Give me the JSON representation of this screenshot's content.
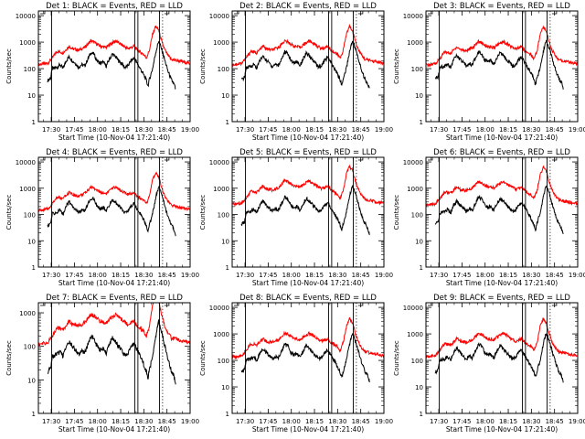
{
  "figure": {
    "background": "#ffffff",
    "axis_color": "#000000",
    "events_color": "#000000",
    "lld_color": "#ff0000"
  },
  "chart_data": [
    {
      "type": "line",
      "title": "Det 1: BLACK = Events, RED = LLD",
      "ylabel": "Counts/sec",
      "xlabel": "Start Time (10-Nov-04 17:21:40)",
      "x_ticklabels": [
        "17:30",
        "17:45",
        "18:00",
        "18:15",
        "18:30",
        "18:45",
        "19:00"
      ],
      "y_ticklabels": [
        "1",
        "10",
        "100",
        "1000",
        "10000"
      ],
      "ylim": [
        1,
        15000
      ],
      "yscale": "log",
      "series": [
        {
          "name": "Events",
          "color": "#000000",
          "level": 1.0
        },
        {
          "name": "LLD",
          "color": "#ff0000",
          "level": 1.0
        }
      ]
    },
    {
      "type": "line",
      "title": "Det 2: BLACK = Events, RED = LLD",
      "ylabel": "Counts/sec",
      "xlabel": "Start Time (10-Nov-04 17:21:40)",
      "x_ticklabels": [
        "17:30",
        "17:45",
        "18:00",
        "18:15",
        "18:30",
        "18:45",
        "19:00"
      ],
      "y_ticklabels": [
        "1",
        "10",
        "100",
        "1000",
        "10000"
      ],
      "ylim": [
        1,
        15000
      ],
      "yscale": "log",
      "series": [
        {
          "name": "Events",
          "color": "#000000",
          "level": 1.05
        },
        {
          "name": "LLD",
          "color": "#ff0000",
          "level": 1.0
        }
      ]
    },
    {
      "type": "line",
      "title": "Det 3: BLACK = Events, RED = LLD",
      "ylabel": "Counts/sec",
      "xlabel": "Start Time (10-Nov-04 17:21:40)",
      "x_ticklabels": [
        "17:30",
        "17:45",
        "18:00",
        "18:15",
        "18:30",
        "18:45",
        "19:00"
      ],
      "y_ticklabels": [
        "1",
        "10",
        "100",
        "1000",
        "10000"
      ],
      "ylim": [
        1,
        15000
      ],
      "yscale": "log",
      "series": [
        {
          "name": "Events",
          "color": "#000000",
          "level": 1.1
        },
        {
          "name": "LLD",
          "color": "#ff0000",
          "level": 0.95
        }
      ]
    },
    {
      "type": "line",
      "title": "Det 4: BLACK = Events, RED = LLD",
      "ylabel": "Counts/sec",
      "xlabel": "Start Time (10-Nov-04 17:21:40)",
      "x_ticklabels": [
        "17:30",
        "17:45",
        "18:00",
        "18:15",
        "18:30",
        "18:45",
        "19:00"
      ],
      "y_ticklabels": [
        "1",
        "10",
        "100",
        "1000",
        "10000"
      ],
      "ylim": [
        1,
        15000
      ],
      "yscale": "log",
      "series": [
        {
          "name": "Events",
          "color": "#000000",
          "level": 1.05
        },
        {
          "name": "LLD",
          "color": "#ff0000",
          "level": 1.0
        }
      ]
    },
    {
      "type": "line",
      "title": "Det 5: BLACK = Events, RED = LLD",
      "ylabel": "Counts/sec",
      "xlabel": "Start Time (10-Nov-04 17:21:40)",
      "x_ticklabels": [
        "17:30",
        "17:45",
        "18:00",
        "18:15",
        "18:30",
        "18:45",
        "19:00"
      ],
      "y_ticklabels": [
        "1",
        "10",
        "100",
        "1000",
        "10000"
      ],
      "ylim": [
        1,
        15000
      ],
      "yscale": "log",
      "series": [
        {
          "name": "Events",
          "color": "#000000",
          "level": 1.15
        },
        {
          "name": "LLD",
          "color": "#ff0000",
          "level": 1.7
        }
      ]
    },
    {
      "type": "line",
      "title": "Det 6: BLACK = Events, RED = LLD",
      "ylabel": "Counts/sec",
      "xlabel": "Start Time (10-Nov-04 17:21:40)",
      "x_ticklabels": [
        "17:30",
        "17:45",
        "18:00",
        "18:15",
        "18:30",
        "18:45",
        "19:00"
      ],
      "y_ticklabels": [
        "1",
        "10",
        "100",
        "1000",
        "10000"
      ],
      "ylim": [
        1,
        15000
      ],
      "yscale": "log",
      "series": [
        {
          "name": "Events",
          "color": "#000000",
          "level": 1.15
        },
        {
          "name": "LLD",
          "color": "#ff0000",
          "level": 1.6
        }
      ]
    },
    {
      "type": "line",
      "title": "Det 7: BLACK = Events, RED = LLD",
      "ylabel": "Counts/sec",
      "xlabel": "Start Time (10-Nov-04 17:21:40)",
      "x_ticklabels": [
        "17:30",
        "17:45",
        "18:00",
        "18:15",
        "18:30",
        "18:45",
        "19:00"
      ],
      "y_ticklabels": [
        "1",
        "10",
        "100",
        "1000"
      ],
      "ylim": [
        1,
        2000
      ],
      "yscale": "log",
      "series": [
        {
          "name": "Events",
          "color": "#000000",
          "level": 0.5
        },
        {
          "name": "LLD",
          "color": "#ff0000",
          "level": 0.8
        }
      ]
    },
    {
      "type": "line",
      "title": "Det 8: BLACK = Events, RED = LLD",
      "ylabel": "Counts/sec",
      "xlabel": "Start Time (10-Nov-04 17:21:40)",
      "x_ticklabels": [
        "17:30",
        "17:45",
        "18:00",
        "18:15",
        "18:30",
        "18:45",
        "19:00"
      ],
      "y_ticklabels": [
        "1",
        "10",
        "100",
        "1000",
        "10000"
      ],
      "ylim": [
        1,
        15000
      ],
      "yscale": "log",
      "series": [
        {
          "name": "Events",
          "color": "#000000",
          "level": 1.0
        },
        {
          "name": "LLD",
          "color": "#ff0000",
          "level": 0.95
        }
      ]
    },
    {
      "type": "line",
      "title": "Det 9: BLACK = Events, RED = LLD",
      "ylabel": "Counts/sec",
      "xlabel": "Start Time (10-Nov-04 17:21:40)",
      "x_ticklabels": [
        "17:30",
        "17:45",
        "18:00",
        "18:15",
        "18:30",
        "18:45",
        "19:00"
      ],
      "y_ticklabels": [
        "1",
        "10",
        "100",
        "1000",
        "10000"
      ],
      "ylim": [
        1,
        15000
      ],
      "yscale": "log",
      "series": [
        {
          "name": "Events",
          "color": "#000000",
          "level": 1.0
        },
        {
          "name": "LLD",
          "color": "#ff0000",
          "level": 0.95
        }
      ]
    }
  ]
}
